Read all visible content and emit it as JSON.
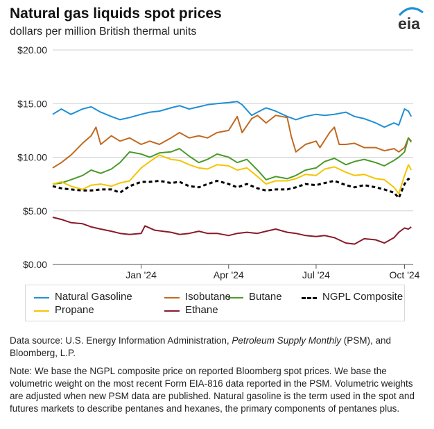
{
  "title": "Natural gas liquids spot prices",
  "subtitle": "dollars per million British thermal units",
  "logo_text": "eia",
  "source": {
    "prefix": "Data source: U.S. Energy Information Administration, ",
    "italic": "Petroleum Supply Monthly",
    "suffix": " (PSM), and Bloomberg, L.P."
  },
  "note": "Note: We base the NGPL composite price on reported Bloomberg spot prices. We base the volumetric weight on the most recent Form EIA-816 data reported in the PSM. Volumetric weights are adjusted when new PSM data are published. Natural gasoline is the term used in the spot and futures markets to describe pentanes and hexanes, the primary components of pentanes plus.",
  "chart_data": {
    "type": "line",
    "ylim": [
      0,
      20
    ],
    "y_ticks": [
      {
        "value": 0,
        "label": "$0.00"
      },
      {
        "value": 5,
        "label": "$5.00"
      },
      {
        "value": 10,
        "label": "$10.00"
      },
      {
        "value": 15,
        "label": "$15.00"
      },
      {
        "value": 20,
        "label": "$20.00"
      }
    ],
    "xlim": [
      "2023-10-01",
      "2024-10-10"
    ],
    "x_ticks": [
      {
        "date": "2024-01-01",
        "label": "Jan '24"
      },
      {
        "date": "2024-04-01",
        "label": "Apr '24"
      },
      {
        "date": "2024-07-01",
        "label": "Jul '24"
      },
      {
        "date": "2024-10-01",
        "label": "Oct '24"
      }
    ],
    "grid": true,
    "legend_position": "bottom",
    "series": [
      {
        "name": "Natural Gasoline",
        "color": "#1f8fd4",
        "dash": "solid",
        "points": [
          [
            "2023-10-01",
            14.0
          ],
          [
            "2023-10-10",
            14.5
          ],
          [
            "2023-10-20",
            14.0
          ],
          [
            "2023-11-01",
            14.5
          ],
          [
            "2023-11-10",
            14.7
          ],
          [
            "2023-11-20",
            14.2
          ],
          [
            "2023-12-01",
            13.8
          ],
          [
            "2023-12-10",
            13.5
          ],
          [
            "2023-12-20",
            13.7
          ],
          [
            "2024-01-01",
            14.0
          ],
          [
            "2024-01-10",
            14.2
          ],
          [
            "2024-01-20",
            14.3
          ],
          [
            "2024-02-01",
            14.6
          ],
          [
            "2024-02-10",
            14.8
          ],
          [
            "2024-02-20",
            14.5
          ],
          [
            "2024-03-01",
            14.7
          ],
          [
            "2024-03-10",
            14.9
          ],
          [
            "2024-03-20",
            15.0
          ],
          [
            "2024-04-01",
            15.1
          ],
          [
            "2024-04-10",
            15.2
          ],
          [
            "2024-04-15",
            14.9
          ],
          [
            "2024-04-25",
            13.9
          ],
          [
            "2024-05-01",
            14.2
          ],
          [
            "2024-05-10",
            14.6
          ],
          [
            "2024-05-20",
            14.3
          ],
          [
            "2024-06-01",
            13.8
          ],
          [
            "2024-06-10",
            13.5
          ],
          [
            "2024-06-20",
            13.8
          ],
          [
            "2024-07-01",
            14.0
          ],
          [
            "2024-07-10",
            13.9
          ],
          [
            "2024-07-20",
            14.0
          ],
          [
            "2024-08-01",
            14.2
          ],
          [
            "2024-08-10",
            13.8
          ],
          [
            "2024-08-20",
            13.6
          ],
          [
            "2024-09-01",
            13.2
          ],
          [
            "2024-09-10",
            12.8
          ],
          [
            "2024-09-20",
            13.2
          ],
          [
            "2024-09-25",
            13.0
          ],
          [
            "2024-10-01",
            14.5
          ],
          [
            "2024-10-05",
            14.3
          ],
          [
            "2024-10-08",
            13.8
          ]
        ]
      },
      {
        "name": "Isobutane",
        "color": "#c06a21",
        "dash": "solid",
        "points": [
          [
            "2023-10-01",
            9.0
          ],
          [
            "2023-10-10",
            9.5
          ],
          [
            "2023-10-20",
            10.2
          ],
          [
            "2023-11-01",
            11.3
          ],
          [
            "2023-11-10",
            12.0
          ],
          [
            "2023-11-15",
            12.8
          ],
          [
            "2023-11-20",
            11.2
          ],
          [
            "2023-12-01",
            12.0
          ],
          [
            "2023-12-10",
            11.5
          ],
          [
            "2023-12-20",
            11.8
          ],
          [
            "2024-01-01",
            11.2
          ],
          [
            "2024-01-10",
            11.5
          ],
          [
            "2024-01-20",
            11.2
          ],
          [
            "2024-02-01",
            11.8
          ],
          [
            "2024-02-10",
            12.3
          ],
          [
            "2024-02-20",
            11.8
          ],
          [
            "2024-03-01",
            12.0
          ],
          [
            "2024-03-10",
            11.8
          ],
          [
            "2024-03-20",
            12.3
          ],
          [
            "2024-04-01",
            12.5
          ],
          [
            "2024-04-10",
            13.8
          ],
          [
            "2024-04-15",
            12.3
          ],
          [
            "2024-04-25",
            13.6
          ],
          [
            "2024-05-01",
            13.9
          ],
          [
            "2024-05-10",
            13.2
          ],
          [
            "2024-05-20",
            13.9
          ],
          [
            "2024-06-01",
            13.7
          ],
          [
            "2024-06-05",
            12.0
          ],
          [
            "2024-06-10",
            10.5
          ],
          [
            "2024-06-20",
            11.2
          ],
          [
            "2024-07-01",
            11.5
          ],
          [
            "2024-07-05",
            10.9
          ],
          [
            "2024-07-15",
            12.3
          ],
          [
            "2024-07-20",
            12.8
          ],
          [
            "2024-07-25",
            11.2
          ],
          [
            "2024-08-01",
            11.2
          ],
          [
            "2024-08-10",
            11.3
          ],
          [
            "2024-08-20",
            10.9
          ],
          [
            "2024-09-01",
            10.9
          ],
          [
            "2024-09-10",
            10.6
          ],
          [
            "2024-09-20",
            10.8
          ],
          [
            "2024-09-25",
            10.5
          ],
          [
            "2024-10-01",
            10.9
          ],
          [
            "2024-10-05",
            11.8
          ],
          [
            "2024-10-08",
            11.4
          ]
        ]
      },
      {
        "name": "Butane",
        "color": "#4a9a2a",
        "dash": "solid",
        "points": [
          [
            "2023-10-01",
            7.5
          ],
          [
            "2023-10-10",
            7.6
          ],
          [
            "2023-10-20",
            7.9
          ],
          [
            "2023-11-01",
            8.3
          ],
          [
            "2023-11-10",
            8.8
          ],
          [
            "2023-11-20",
            8.5
          ],
          [
            "2023-12-01",
            8.9
          ],
          [
            "2023-12-10",
            9.5
          ],
          [
            "2023-12-20",
            10.5
          ],
          [
            "2024-01-01",
            10.3
          ],
          [
            "2024-01-10",
            10.0
          ],
          [
            "2024-01-20",
            10.4
          ],
          [
            "2024-02-01",
            10.5
          ],
          [
            "2024-02-10",
            10.8
          ],
          [
            "2024-02-20",
            10.1
          ],
          [
            "2024-03-01",
            9.5
          ],
          [
            "2024-03-10",
            9.8
          ],
          [
            "2024-03-20",
            10.3
          ],
          [
            "2024-04-01",
            10.0
          ],
          [
            "2024-04-10",
            9.5
          ],
          [
            "2024-04-20",
            9.8
          ],
          [
            "2024-05-01",
            8.8
          ],
          [
            "2024-05-10",
            7.9
          ],
          [
            "2024-05-20",
            8.2
          ],
          [
            "2024-06-01",
            8.0
          ],
          [
            "2024-06-10",
            8.3
          ],
          [
            "2024-06-20",
            8.8
          ],
          [
            "2024-07-01",
            9.0
          ],
          [
            "2024-07-10",
            9.6
          ],
          [
            "2024-07-20",
            9.9
          ],
          [
            "2024-08-01",
            9.3
          ],
          [
            "2024-08-10",
            9.6
          ],
          [
            "2024-08-20",
            9.8
          ],
          [
            "2024-09-01",
            9.5
          ],
          [
            "2024-09-10",
            9.2
          ],
          [
            "2024-09-20",
            9.7
          ],
          [
            "2024-09-25",
            10.0
          ],
          [
            "2024-10-01",
            10.5
          ],
          [
            "2024-10-05",
            11.8
          ],
          [
            "2024-10-08",
            11.5
          ]
        ]
      },
      {
        "name": "NGPL Composite",
        "color": "#000000",
        "dash": "dashed",
        "points": [
          [
            "2023-10-01",
            7.3
          ],
          [
            "2023-10-10",
            7.1
          ],
          [
            "2023-10-20",
            7.0
          ],
          [
            "2023-11-01",
            6.9
          ],
          [
            "2023-11-10",
            6.9
          ],
          [
            "2023-11-20",
            7.0
          ],
          [
            "2023-12-01",
            7.0
          ],
          [
            "2023-12-10",
            6.7
          ],
          [
            "2023-12-20",
            7.3
          ],
          [
            "2024-01-01",
            7.7
          ],
          [
            "2024-01-10",
            7.7
          ],
          [
            "2024-01-20",
            7.8
          ],
          [
            "2024-02-01",
            7.6
          ],
          [
            "2024-02-10",
            7.7
          ],
          [
            "2024-02-20",
            7.3
          ],
          [
            "2024-03-01",
            7.2
          ],
          [
            "2024-03-10",
            7.5
          ],
          [
            "2024-03-20",
            7.8
          ],
          [
            "2024-04-01",
            7.5
          ],
          [
            "2024-04-10",
            7.2
          ],
          [
            "2024-04-20",
            7.5
          ],
          [
            "2024-05-01",
            7.1
          ],
          [
            "2024-05-10",
            6.9
          ],
          [
            "2024-05-20",
            7.0
          ],
          [
            "2024-06-01",
            7.0
          ],
          [
            "2024-06-10",
            7.2
          ],
          [
            "2024-06-20",
            7.5
          ],
          [
            "2024-07-01",
            7.4
          ],
          [
            "2024-07-10",
            7.6
          ],
          [
            "2024-07-20",
            7.8
          ],
          [
            "2024-08-01",
            7.4
          ],
          [
            "2024-08-10",
            7.2
          ],
          [
            "2024-08-20",
            7.4
          ],
          [
            "2024-09-01",
            7.2
          ],
          [
            "2024-09-10",
            7.0
          ],
          [
            "2024-09-20",
            6.7
          ],
          [
            "2024-09-25",
            6.2
          ],
          [
            "2024-10-01",
            7.5
          ],
          [
            "2024-10-05",
            8.0
          ],
          [
            "2024-10-08",
            7.7
          ]
        ]
      },
      {
        "name": "Propane",
        "color": "#f5c400",
        "dash": "solid",
        "points": [
          [
            "2023-10-01",
            7.5
          ],
          [
            "2023-10-10",
            7.7
          ],
          [
            "2023-10-20",
            7.3
          ],
          [
            "2023-11-01",
            7.0
          ],
          [
            "2023-11-10",
            7.4
          ],
          [
            "2023-11-20",
            7.5
          ],
          [
            "2023-12-01",
            7.3
          ],
          [
            "2023-12-10",
            7.6
          ],
          [
            "2023-12-20",
            7.8
          ],
          [
            "2024-01-01",
            9.0
          ],
          [
            "2024-01-10",
            9.6
          ],
          [
            "2024-01-20",
            10.2
          ],
          [
            "2024-02-01",
            9.8
          ],
          [
            "2024-02-10",
            9.7
          ],
          [
            "2024-02-20",
            9.3
          ],
          [
            "2024-03-01",
            9.0
          ],
          [
            "2024-03-10",
            8.9
          ],
          [
            "2024-03-20",
            9.3
          ],
          [
            "2024-04-01",
            9.2
          ],
          [
            "2024-04-10",
            8.8
          ],
          [
            "2024-04-20",
            9.0
          ],
          [
            "2024-05-01",
            8.2
          ],
          [
            "2024-05-10",
            7.5
          ],
          [
            "2024-05-20",
            7.8
          ],
          [
            "2024-06-01",
            7.8
          ],
          [
            "2024-06-10",
            8.0
          ],
          [
            "2024-06-20",
            8.4
          ],
          [
            "2024-07-01",
            8.3
          ],
          [
            "2024-07-10",
            8.9
          ],
          [
            "2024-07-20",
            9.1
          ],
          [
            "2024-08-01",
            8.6
          ],
          [
            "2024-08-10",
            8.3
          ],
          [
            "2024-08-20",
            8.4
          ],
          [
            "2024-09-01",
            8.0
          ],
          [
            "2024-09-10",
            7.9
          ],
          [
            "2024-09-20",
            7.2
          ],
          [
            "2024-09-25",
            6.6
          ],
          [
            "2024-10-01",
            8.3
          ],
          [
            "2024-10-05",
            9.3
          ],
          [
            "2024-10-08",
            8.8
          ]
        ]
      },
      {
        "name": "Ethane",
        "color": "#8a1a2a",
        "dash": "solid",
        "points": [
          [
            "2023-10-01",
            4.4
          ],
          [
            "2023-10-10",
            4.2
          ],
          [
            "2023-10-20",
            3.9
          ],
          [
            "2023-11-01",
            3.8
          ],
          [
            "2023-11-10",
            3.5
          ],
          [
            "2023-11-20",
            3.3
          ],
          [
            "2023-12-01",
            3.1
          ],
          [
            "2023-12-10",
            2.9
          ],
          [
            "2023-12-20",
            2.8
          ],
          [
            "2024-01-01",
            2.9
          ],
          [
            "2024-01-05",
            3.6
          ],
          [
            "2024-01-15",
            3.2
          ],
          [
            "2024-02-01",
            3.0
          ],
          [
            "2024-02-10",
            2.8
          ],
          [
            "2024-02-20",
            2.9
          ],
          [
            "2024-03-01",
            3.1
          ],
          [
            "2024-03-10",
            2.9
          ],
          [
            "2024-03-20",
            2.9
          ],
          [
            "2024-04-01",
            2.7
          ],
          [
            "2024-04-10",
            2.9
          ],
          [
            "2024-04-20",
            3.0
          ],
          [
            "2024-05-01",
            2.9
          ],
          [
            "2024-05-10",
            3.1
          ],
          [
            "2024-05-20",
            3.3
          ],
          [
            "2024-06-01",
            3.0
          ],
          [
            "2024-06-10",
            2.9
          ],
          [
            "2024-06-20",
            2.7
          ],
          [
            "2024-07-01",
            2.6
          ],
          [
            "2024-07-10",
            2.7
          ],
          [
            "2024-07-20",
            2.5
          ],
          [
            "2024-08-01",
            2.0
          ],
          [
            "2024-08-10",
            1.9
          ],
          [
            "2024-08-20",
            2.4
          ],
          [
            "2024-09-01",
            2.3
          ],
          [
            "2024-09-10",
            2.0
          ],
          [
            "2024-09-20",
            2.5
          ],
          [
            "2024-09-25",
            3.0
          ],
          [
            "2024-10-01",
            3.4
          ],
          [
            "2024-10-05",
            3.3
          ],
          [
            "2024-10-08",
            3.5
          ]
        ]
      }
    ]
  },
  "legend": {
    "rows": [
      [
        "Natural Gasoline",
        "Isobutane",
        "Butane",
        "NGPL Composite"
      ],
      [
        "Propane",
        "Ethane"
      ]
    ]
  }
}
